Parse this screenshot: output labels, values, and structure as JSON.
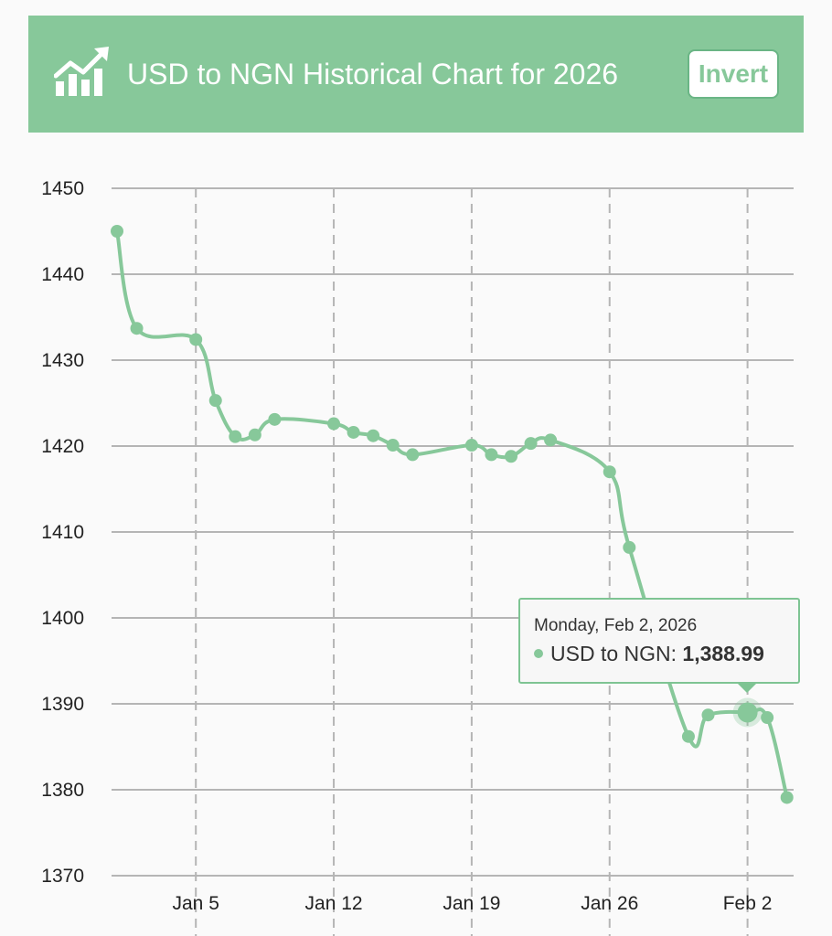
{
  "header": {
    "title": "USD to NGN Historical Chart for 2026",
    "invert_label": "Invert",
    "logo_icon": "trend-chart-icon"
  },
  "colors": {
    "accent": "#87c89a",
    "line": "#87c89a",
    "grid": "#b5b5b5",
    "tooltip_border": "#7ec493"
  },
  "tooltip": {
    "date": "Monday, Feb 2, 2026",
    "series": "USD to NGN",
    "value": "1,388.99"
  },
  "chart_data": {
    "type": "line",
    "title": "USD to NGN Historical Chart for 2026",
    "ylim": [
      1370,
      1450
    ],
    "yticks": [
      1450,
      1440,
      1430,
      1420,
      1410,
      1400,
      1390,
      1380,
      1370
    ],
    "xticks": [
      {
        "day": 5,
        "label": "Jan 5"
      },
      {
        "day": 12,
        "label": "Jan 12"
      },
      {
        "day": 19,
        "label": "Jan 19"
      },
      {
        "day": 26,
        "label": "Jan 26"
      },
      {
        "day": 33,
        "label": "Feb 2"
      }
    ],
    "grid": true,
    "series": [
      {
        "name": "USD to NGN",
        "points": [
          {
            "day": 1,
            "date": "Jan 1",
            "value": 1445.0
          },
          {
            "day": 2,
            "date": "Jan 2",
            "value": 1433.7
          },
          {
            "day": 5,
            "date": "Jan 5",
            "value": 1432.4
          },
          {
            "day": 6,
            "date": "Jan 6",
            "value": 1425.3
          },
          {
            "day": 7,
            "date": "Jan 7",
            "value": 1421.1
          },
          {
            "day": 8,
            "date": "Jan 8",
            "value": 1421.3
          },
          {
            "day": 9,
            "date": "Jan 9",
            "value": 1423.1
          },
          {
            "day": 12,
            "date": "Jan 12",
            "value": 1422.6
          },
          {
            "day": 13,
            "date": "Jan 13",
            "value": 1421.6
          },
          {
            "day": 14,
            "date": "Jan 14",
            "value": 1421.2
          },
          {
            "day": 15,
            "date": "Jan 15",
            "value": 1420.1
          },
          {
            "day": 16,
            "date": "Jan 16",
            "value": 1419.0
          },
          {
            "day": 19,
            "date": "Jan 19",
            "value": 1420.1
          },
          {
            "day": 20,
            "date": "Jan 20",
            "value": 1419.0
          },
          {
            "day": 21,
            "date": "Jan 21",
            "value": 1418.8
          },
          {
            "day": 22,
            "date": "Jan 22",
            "value": 1420.3
          },
          {
            "day": 23,
            "date": "Jan 23",
            "value": 1420.7
          },
          {
            "day": 26,
            "date": "Jan 26",
            "value": 1417.0
          },
          {
            "day": 27,
            "date": "Jan 27",
            "value": 1408.2
          },
          {
            "day": 30,
            "date": "Jan 30",
            "value": 1386.2
          },
          {
            "day": 31,
            "date": "Jan 31",
            "value": 1388.7
          },
          {
            "day": 33,
            "date": "Feb 2",
            "value": 1388.99
          },
          {
            "day": 34,
            "date": "Feb 3",
            "value": 1388.4
          },
          {
            "day": 35,
            "date": "Feb 4",
            "value": 1379.1
          }
        ]
      }
    ]
  }
}
